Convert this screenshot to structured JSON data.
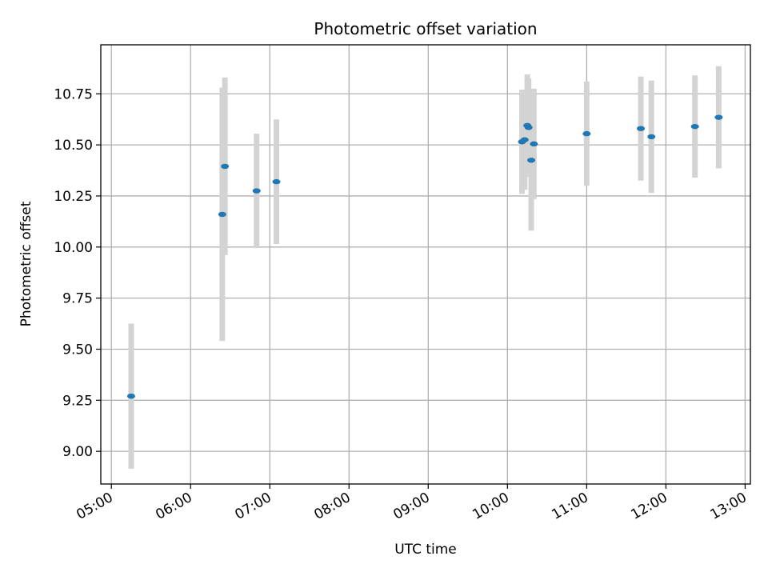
{
  "chart_data": {
    "type": "scatter",
    "title": "Photometric offset variation",
    "xlabel": "UTC time",
    "ylabel": "Photometric offset",
    "x_axis_type": "time",
    "xlim": [
      "04:52",
      "13:04"
    ],
    "ylim": [
      8.84,
      10.99
    ],
    "x_ticks": [
      "05:00",
      "06:00",
      "07:00",
      "08:00",
      "09:00",
      "10:00",
      "11:00",
      "12:00",
      "13:00"
    ],
    "y_ticks": [
      "9.00",
      "9.25",
      "9.50",
      "9.75",
      "10.00",
      "10.25",
      "10.50",
      "10.75"
    ],
    "grid": true,
    "colors": {
      "points": "#1f77b4",
      "errorbars": "#d3d3d3",
      "grid": "#b0b0b0"
    },
    "points": [
      {
        "x": "05:15",
        "y": 9.27,
        "err": 0.355
      },
      {
        "x": "06:24",
        "y": 10.16,
        "err": 0.62
      },
      {
        "x": "06:26",
        "y": 10.395,
        "err": 0.435
      },
      {
        "x": "06:50",
        "y": 10.275,
        "err": 0.28
      },
      {
        "x": "07:05",
        "y": 10.32,
        "err": 0.305
      },
      {
        "x": "10:11",
        "y": 10.515,
        "err": 0.255
      },
      {
        "x": "10:13",
        "y": 10.525,
        "err": 0.245
      },
      {
        "x": "10:15",
        "y": 10.595,
        "err": 0.25
      },
      {
        "x": "10:16",
        "y": 10.585,
        "err": 0.24
      },
      {
        "x": "10:18",
        "y": 10.425,
        "err": 0.345
      },
      {
        "x": "10:20",
        "y": 10.505,
        "err": 0.27
      },
      {
        "x": "11:00",
        "y": 10.555,
        "err": 0.255
      },
      {
        "x": "11:41",
        "y": 10.58,
        "err": 0.255
      },
      {
        "x": "11:49",
        "y": 10.54,
        "err": 0.275
      },
      {
        "x": "12:22",
        "y": 10.59,
        "err": 0.25
      },
      {
        "x": "12:40",
        "y": 10.635,
        "err": 0.25
      }
    ]
  }
}
